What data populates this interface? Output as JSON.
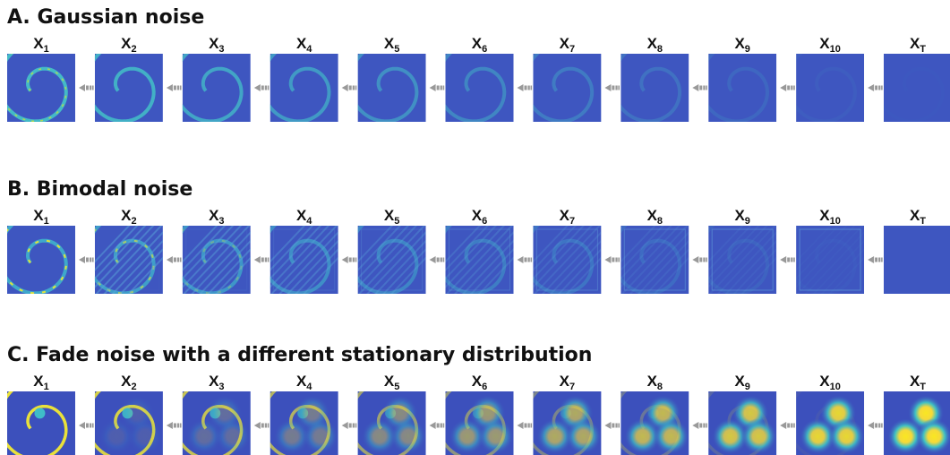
{
  "panels": [
    {
      "title": "A. Gaussian noise",
      "labels": [
        {
          "main": "X",
          "sub": "1"
        },
        {
          "main": "X",
          "sub": "2"
        },
        {
          "main": "X",
          "sub": "3"
        },
        {
          "main": "X",
          "sub": "4"
        },
        {
          "main": "X",
          "sub": "5"
        },
        {
          "main": "X",
          "sub": "6"
        },
        {
          "main": "X",
          "sub": "7"
        },
        {
          "main": "X",
          "sub": "8"
        },
        {
          "main": "X",
          "sub": "9"
        },
        {
          "main": "X",
          "sub": "10"
        },
        {
          "main": "X",
          "sub": "T"
        }
      ]
    },
    {
      "title": "B. Bimodal noise",
      "labels": [
        {
          "main": "X",
          "sub": "1"
        },
        {
          "main": "X",
          "sub": "2"
        },
        {
          "main": "X",
          "sub": "3"
        },
        {
          "main": "X",
          "sub": "4"
        },
        {
          "main": "X",
          "sub": "5"
        },
        {
          "main": "X",
          "sub": "6"
        },
        {
          "main": "X",
          "sub": "7"
        },
        {
          "main": "X",
          "sub": "8"
        },
        {
          "main": "X",
          "sub": "9"
        },
        {
          "main": "X",
          "sub": "10"
        },
        {
          "main": "X",
          "sub": "T"
        }
      ]
    },
    {
      "title": "C. Fade noise with a different stationary distribution",
      "labels": [
        {
          "main": "X",
          "sub": "1"
        },
        {
          "main": "X",
          "sub": "2"
        },
        {
          "main": "X",
          "sub": "3"
        },
        {
          "main": "X",
          "sub": "4"
        },
        {
          "main": "X",
          "sub": "5"
        },
        {
          "main": "X",
          "sub": "6"
        },
        {
          "main": "X",
          "sub": "7"
        },
        {
          "main": "X",
          "sub": "8"
        },
        {
          "main": "X",
          "sub": "9"
        },
        {
          "main": "X",
          "sub": "10"
        },
        {
          "main": "X",
          "sub": "T"
        }
      ]
    }
  ]
}
